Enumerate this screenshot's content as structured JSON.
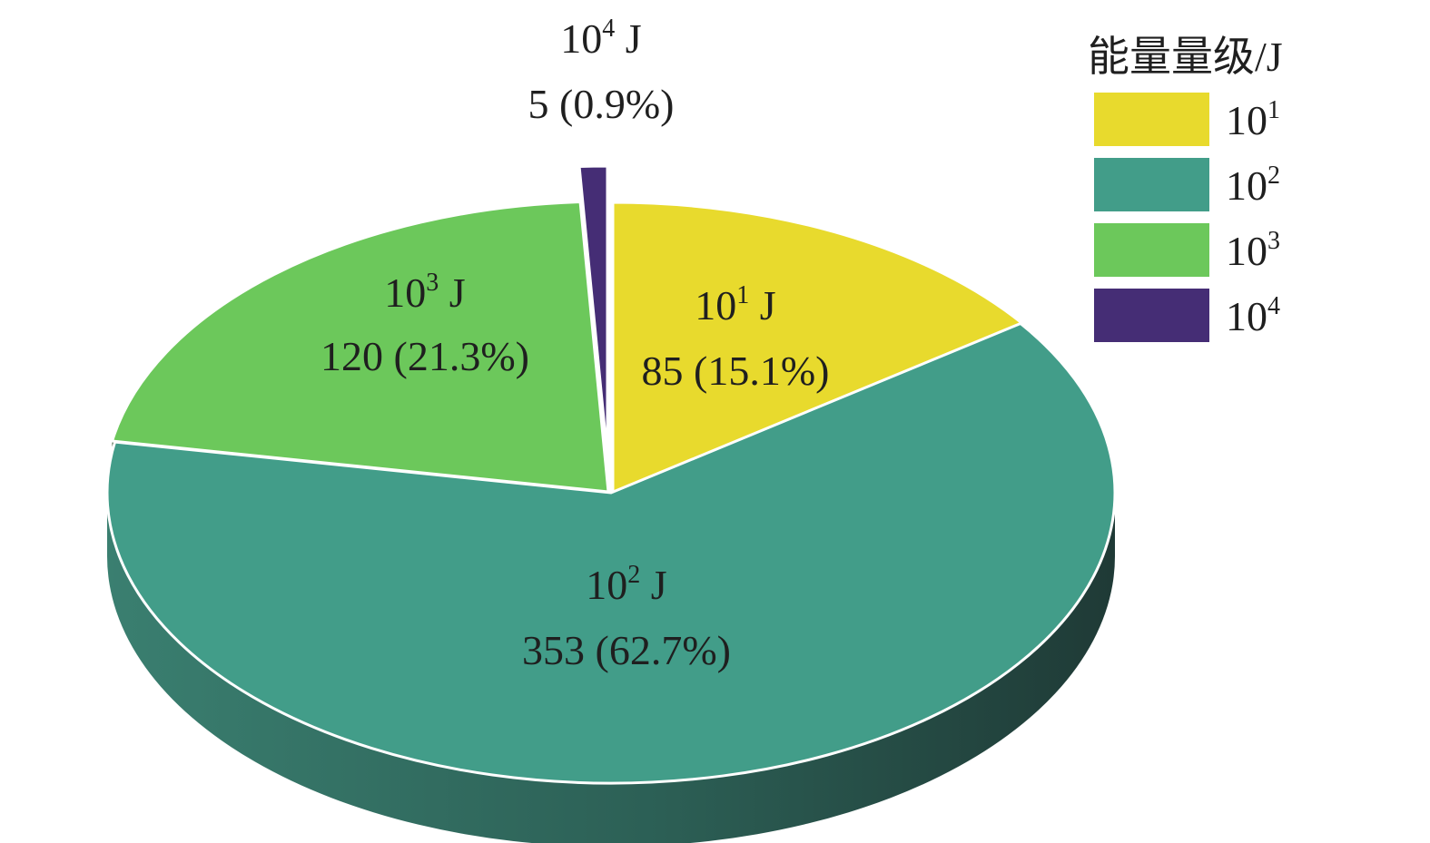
{
  "chart_data": {
    "type": "pie",
    "legend": {
      "title": "能量量级/J",
      "position": "top-right"
    },
    "slices": [
      {
        "name": "10",
        "sup": "1",
        "value": 85,
        "percent": "15.1%",
        "label_count": "85 (15.1%)",
        "label_unit": "J",
        "color": "#E8DA2D",
        "side": "#8a8520"
      },
      {
        "name": "10",
        "sup": "2",
        "value": 353,
        "percent": "62.7%",
        "label_count": "353 (62.7%)",
        "label_unit": "J",
        "color": "#429D89",
        "side": "#2f6f61"
      },
      {
        "name": "10",
        "sup": "3",
        "value": 120,
        "percent": "21.3%",
        "label_count": "120 (21.3%)",
        "label_unit": "J",
        "color": "#6CC85B",
        "side": "#2d4a28"
      },
      {
        "name": "10",
        "sup": "4",
        "value": 5,
        "percent": "0.9%",
        "label_count": "5 (0.9%)",
        "label_unit": "J",
        "color": "#452D75",
        "side": "#2a1a4a"
      }
    ]
  }
}
